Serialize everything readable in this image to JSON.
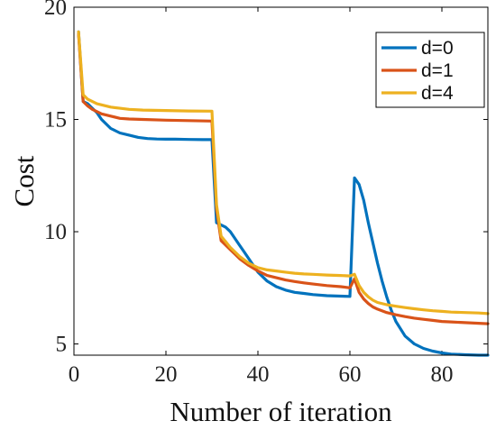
{
  "chart_data": {
    "type": "line",
    "xlabel": "Number of iteration",
    "ylabel": "Cost",
    "xlim": [
      0,
      90
    ],
    "ylim": [
      4.5,
      20
    ],
    "xticks": [
      0,
      20,
      40,
      60,
      80
    ],
    "yticks": [
      5,
      10,
      15,
      20
    ],
    "grid": false,
    "legend_position": "top-right",
    "series": [
      {
        "name": "d=0",
        "color": "#0072BD",
        "x": [
          1,
          2,
          3,
          4,
          5,
          6,
          7,
          8,
          9,
          10,
          12,
          14,
          16,
          18,
          20,
          22,
          25,
          28,
          30,
          31,
          32,
          33,
          34,
          35,
          36,
          37,
          38,
          40,
          42,
          44,
          46,
          48,
          50,
          52,
          55,
          58,
          60,
          61,
          62,
          63,
          64,
          65,
          66,
          67,
          68,
          69,
          70,
          72,
          74,
          76,
          78,
          80,
          82,
          85,
          88,
          90
        ],
        "y": [
          18.9,
          15.8,
          15.7,
          15.5,
          15.3,
          15.0,
          14.8,
          14.6,
          14.5,
          14.4,
          14.3,
          14.2,
          14.15,
          14.13,
          14.12,
          14.12,
          14.11,
          14.1,
          14.1,
          10.4,
          10.3,
          10.2,
          10.0,
          9.7,
          9.4,
          9.1,
          8.8,
          8.2,
          7.8,
          7.55,
          7.4,
          7.3,
          7.25,
          7.2,
          7.15,
          7.13,
          7.12,
          12.4,
          12.1,
          11.4,
          10.4,
          9.5,
          8.6,
          7.8,
          7.1,
          6.5,
          6.0,
          5.35,
          5.0,
          4.8,
          4.68,
          4.6,
          4.55,
          4.52,
          4.5,
          4.5
        ]
      },
      {
        "name": "d=1",
        "color": "#D95319",
        "x": [
          1,
          2,
          3,
          4,
          5,
          6,
          8,
          10,
          12,
          15,
          20,
          25,
          30,
          31,
          32,
          33,
          34,
          35,
          36,
          38,
          40,
          42,
          44,
          46,
          48,
          50,
          52,
          55,
          58,
          60,
          61,
          62,
          63,
          64,
          65,
          66,
          68,
          70,
          72,
          74,
          76,
          78,
          80,
          82,
          85,
          88,
          90
        ],
        "y": [
          18.8,
          15.8,
          15.6,
          15.45,
          15.35,
          15.25,
          15.15,
          15.05,
          15.02,
          15.0,
          14.97,
          14.95,
          14.93,
          11.0,
          9.6,
          9.4,
          9.2,
          9.0,
          8.8,
          8.5,
          8.25,
          8.05,
          7.95,
          7.85,
          7.78,
          7.72,
          7.67,
          7.6,
          7.55,
          7.5,
          7.9,
          7.3,
          7.0,
          6.8,
          6.65,
          6.55,
          6.4,
          6.3,
          6.22,
          6.15,
          6.1,
          6.05,
          6.0,
          5.98,
          5.95,
          5.92,
          5.9
        ]
      },
      {
        "name": "d=4",
        "color": "#EDB120",
        "x": [
          1,
          2,
          3,
          4,
          5,
          6,
          8,
          10,
          12,
          15,
          20,
          25,
          30,
          31,
          32,
          33,
          34,
          35,
          36,
          38,
          40,
          42,
          44,
          46,
          48,
          50,
          52,
          55,
          58,
          60,
          61,
          62,
          63,
          64,
          65,
          66,
          68,
          70,
          72,
          74,
          76,
          78,
          80,
          82,
          85,
          88,
          90
        ],
        "y": [
          18.9,
          16.1,
          15.9,
          15.8,
          15.7,
          15.65,
          15.55,
          15.5,
          15.45,
          15.42,
          15.4,
          15.38,
          15.37,
          11.2,
          9.8,
          9.55,
          9.3,
          9.1,
          8.9,
          8.6,
          8.4,
          8.3,
          8.25,
          8.2,
          8.15,
          8.12,
          8.1,
          8.07,
          8.05,
          8.03,
          8.1,
          7.6,
          7.3,
          7.1,
          6.95,
          6.85,
          6.75,
          6.68,
          6.62,
          6.57,
          6.52,
          6.48,
          6.45,
          6.42,
          6.4,
          6.38,
          6.35
        ]
      }
    ]
  }
}
